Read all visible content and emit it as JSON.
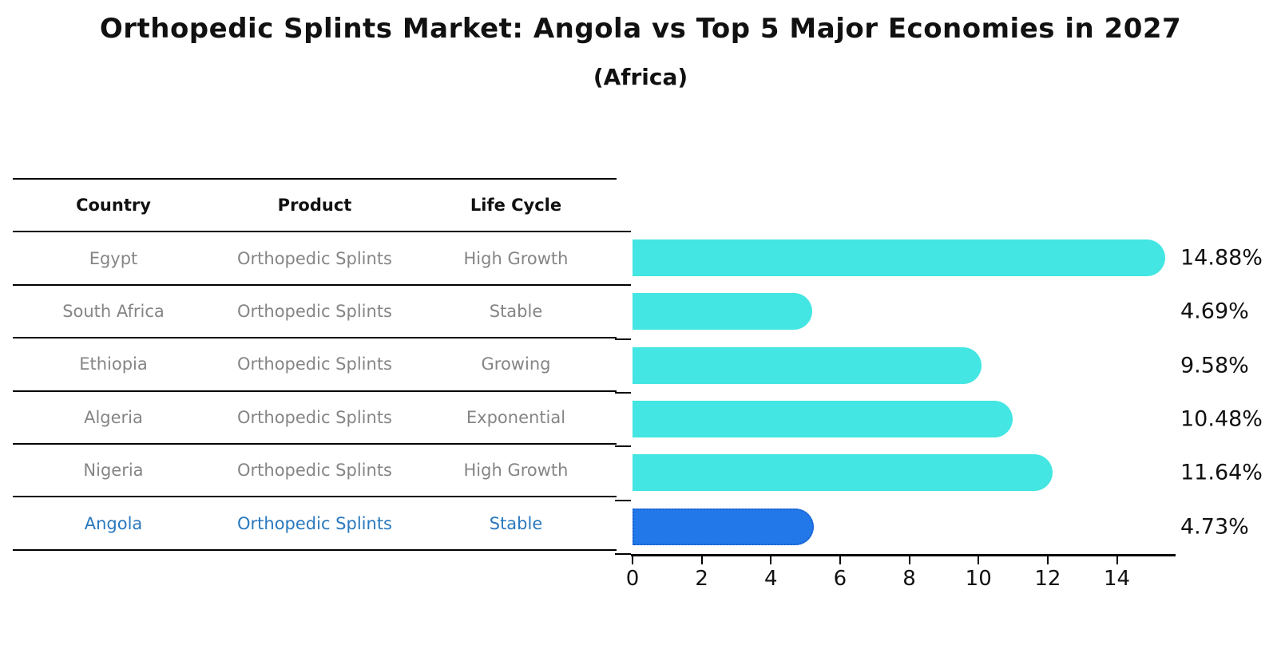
{
  "title": "Orthopedic Splints Market: Angola vs Top 5 Major Economies in 2027",
  "subtitle": "(Africa)",
  "table": {
    "headers": [
      "Country",
      "Product",
      "Life Cycle"
    ],
    "rows": [
      {
        "country": "Egypt",
        "product": "Orthopedic Splints",
        "life_cycle": "High Growth",
        "highlight": false
      },
      {
        "country": "South Africa",
        "product": "Orthopedic Splints",
        "life_cycle": "Stable",
        "highlight": false
      },
      {
        "country": "Ethiopia",
        "product": "Orthopedic Splints",
        "life_cycle": "Growing",
        "highlight": false
      },
      {
        "country": "Algeria",
        "product": "Orthopedic Splints",
        "life_cycle": "Exponential",
        "highlight": false
      },
      {
        "country": "Nigeria",
        "product": "Orthopedic Splints",
        "life_cycle": "High Growth",
        "highlight": false
      },
      {
        "country": "Angola",
        "product": "Orthopedic Splints",
        "life_cycle": "Stable",
        "highlight": true
      }
    ]
  },
  "chart_data": {
    "type": "bar",
    "orientation": "horizontal",
    "title": "Orthopedic Splints Market: Angola vs Top 5 Major Economies in 2027 (Africa)",
    "categories": [
      "Egypt",
      "South Africa",
      "Ethiopia",
      "Algeria",
      "Nigeria",
      "Angola"
    ],
    "values": [
      14.88,
      4.69,
      9.58,
      10.48,
      11.64,
      4.73
    ],
    "value_labels": [
      "14.88%",
      "4.69%",
      "9.58%",
      "10.48%",
      "11.64%",
      "4.73%"
    ],
    "unit": "%",
    "xlim": [
      0,
      15.65
    ],
    "x_ticks": [
      0,
      2,
      4,
      6,
      8,
      10,
      12,
      14
    ],
    "grid": false,
    "legend_position": "none",
    "bar_color": "#43E6E2",
    "highlight_bar_color": "#2278E8",
    "highlight_index": 5
  },
  "colors": {
    "background": "#FFFFFF",
    "bar_cyan": "#43E6E2",
    "bar_blue": "#2278E8",
    "highlight_text_blue": "#2878BE",
    "table_text_gray": "#858585",
    "text_black": "#111111"
  }
}
